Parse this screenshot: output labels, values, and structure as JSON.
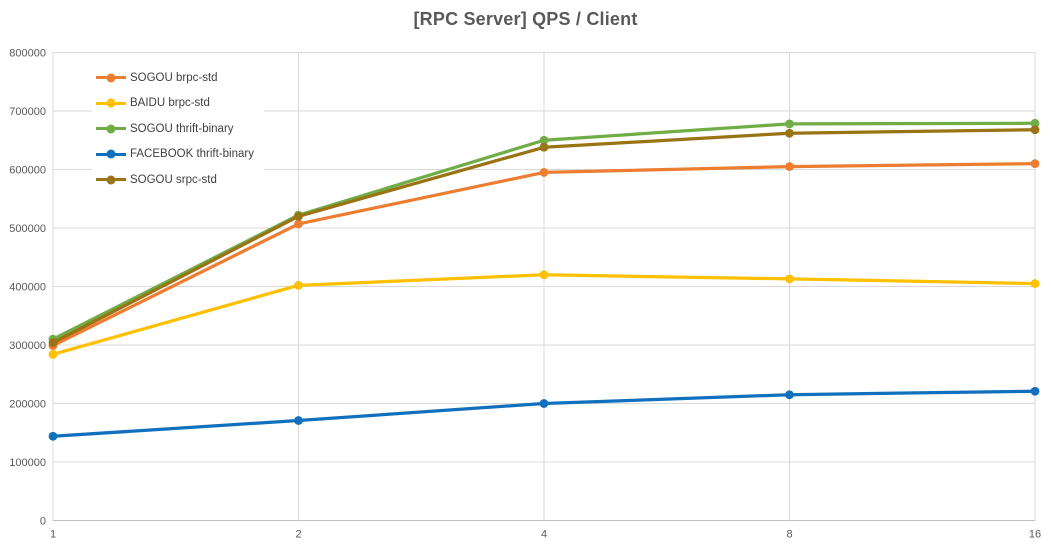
{
  "title": "[RPC Server] QPS / Client",
  "colors": {
    "title_text": "#595959",
    "axis_text": "#595959",
    "legend_text": "#404040",
    "gridline": "#D9D9D9",
    "axis_line": "#BFBFBF",
    "background": "#FFFFFF"
  },
  "chart_data": {
    "type": "line",
    "title": "[RPC Server] QPS / Client",
    "xlabel": "",
    "ylabel": "",
    "categories": [
      "1",
      "2",
      "4",
      "8",
      "16"
    ],
    "x_axis_note": "client count, log2-spaced categories",
    "ylim": [
      0,
      800000
    ],
    "y_ticks": [
      0,
      100000,
      200000,
      300000,
      400000,
      500000,
      600000,
      700000,
      800000
    ],
    "grid": true,
    "legend_position": "inside-top-left",
    "marker": "circle",
    "series": [
      {
        "name": "SOGOU brpc-std",
        "color": "#ED7D31",
        "values": [
          299000,
          507000,
          595000,
          605000,
          610000
        ]
      },
      {
        "name": "BAIDU brpc-std",
        "color": "#FFC000",
        "values": [
          284000,
          402000,
          420000,
          413000,
          405000
        ]
      },
      {
        "name": "SOGOU thrift-binary",
        "color": "#70AD47",
        "values": [
          310000,
          522000,
          650000,
          678000,
          679000
        ]
      },
      {
        "name": "FACEBOOK thrift-binary",
        "color": "#1170BE",
        "values": [
          144000,
          171000,
          200000,
          215000,
          221000
        ]
      },
      {
        "name": "SOGOU srpc-std",
        "color": "#9A7414",
        "values": [
          304000,
          520000,
          638000,
          662000,
          668000
        ]
      }
    ]
  }
}
